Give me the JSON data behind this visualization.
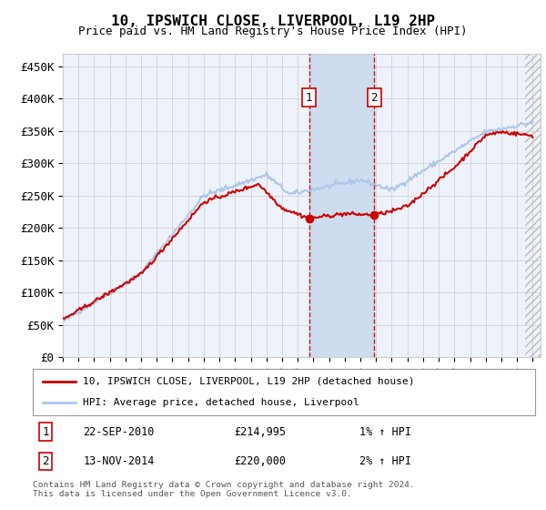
{
  "title": "10, IPSWICH CLOSE, LIVERPOOL, L19 2HP",
  "subtitle": "Price paid vs. HM Land Registry's House Price Index (HPI)",
  "ylabel_ticks": [
    "£0",
    "£50K",
    "£100K",
    "£150K",
    "£200K",
    "£250K",
    "£300K",
    "£350K",
    "£400K",
    "£450K"
  ],
  "ytick_values": [
    0,
    50000,
    100000,
    150000,
    200000,
    250000,
    300000,
    350000,
    400000,
    450000
  ],
  "ylim": [
    0,
    470000
  ],
  "xlim_start": 1995.0,
  "xlim_end": 2025.5,
  "transaction1_x": 2010.72,
  "transaction1_y": 214995,
  "transaction1_label": "1",
  "transaction1_date": "22-SEP-2010",
  "transaction1_price": "£214,995",
  "transaction1_hpi": "1% ↑ HPI",
  "transaction2_x": 2014.87,
  "transaction2_y": 220000,
  "transaction2_label": "2",
  "transaction2_date": "13-NOV-2014",
  "transaction2_price": "£220,000",
  "transaction2_hpi": "2% ↑ HPI",
  "legend_line1": "10, IPSWICH CLOSE, LIVERPOOL, L19 2HP (detached house)",
  "legend_line2": "HPI: Average price, detached house, Liverpool",
  "footnote": "Contains HM Land Registry data © Crown copyright and database right 2024.\nThis data is licensed under the Open Government Licence v3.0.",
  "hpi_color": "#aec6e8",
  "price_color": "#cc0000",
  "bg_color": "#ffffff",
  "plot_bg_color": "#eef2fa",
  "grid_color": "#cccccc",
  "shade_color": "#cddcee",
  "transaction_box_color": "#cc0000"
}
